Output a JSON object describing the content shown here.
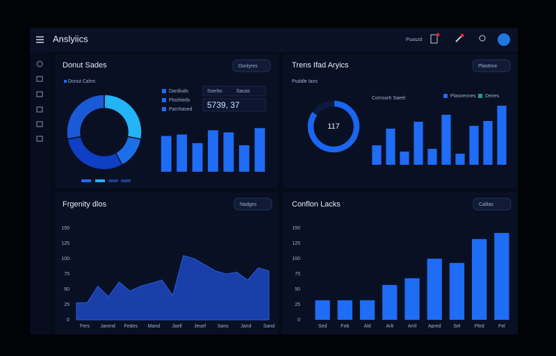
{
  "header": {
    "title": "Anslyiics",
    "status": "Puaszd"
  },
  "chart_data": [
    {
      "type": "donut",
      "title": "Donut Sades",
      "dropdown": "Donlyres",
      "subtitle": "Donut Cahrs",
      "values": [
        28,
        14,
        30,
        28
      ],
      "colors": [
        "#22b4f5",
        "#1d6fe8",
        "#0f3fc4",
        "#1a5ad6"
      ]
    },
    {
      "type": "bar",
      "legend": [
        "Dardiuds",
        "Ploshieds",
        "Parchased"
      ],
      "kpi_labels": [
        "Sserbs",
        "Sacas"
      ],
      "kpi": "5739, 37",
      "values": [
        50,
        52,
        40,
        58,
        55,
        37,
        61
      ],
      "ylim": [
        0,
        70
      ],
      "color": "#1f6cf5"
    },
    {
      "type": "donut",
      "title": "Trens Ifad Aryics",
      "dropdown": "Plasttme",
      "subtitle": "Puddle Ians",
      "center_label": "117",
      "values": [
        85,
        15
      ],
      "colors": [
        "#1a66f0",
        "#0b1a3d"
      ]
    },
    {
      "type": "bar",
      "subtitle": "Comsorh Saeel",
      "legend": [
        "Plasnennes",
        "Deires"
      ],
      "values": [
        28,
        52,
        19,
        62,
        23,
        72,
        16,
        56,
        63,
        85
      ],
      "ylim": [
        0,
        90
      ],
      "color": "#1f6cf5"
    },
    {
      "type": "area",
      "title": "Frgenity dlos",
      "dropdown": "Nadges",
      "values": [
        28,
        28,
        55,
        38,
        62,
        47,
        55,
        60,
        65,
        40,
        105,
        100,
        90,
        80,
        75,
        78,
        65,
        85,
        80
      ],
      "ylim": [
        0,
        150
      ],
      "yticks": [
        0,
        25,
        50,
        75,
        100,
        125,
        150
      ],
      "xtick_labels": [
        "Fers",
        "Jarend",
        "Fedes",
        "Mand",
        "Jaell",
        "Jeuef",
        "Sans",
        "Jand",
        "Sand"
      ],
      "color": "#1a3fa8"
    },
    {
      "type": "bar",
      "title": "Conflon Lacks",
      "dropdown": "Callias",
      "categories": [
        "Sed",
        "Feb",
        "Ald",
        "Arlt",
        "Arril",
        "Apred",
        "Sel",
        "Ffed",
        "Fel"
      ],
      "values": [
        32,
        32,
        32,
        57,
        68,
        100,
        93,
        132,
        142
      ],
      "ylim": [
        0,
        150
      ],
      "yticks": [
        0,
        25,
        50,
        75,
        100,
        125,
        150
      ],
      "color": "#1f6cf5"
    }
  ]
}
